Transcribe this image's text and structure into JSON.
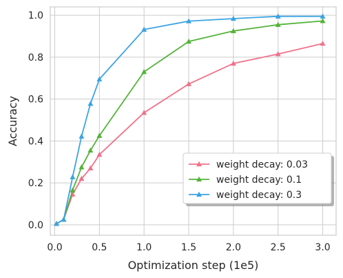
{
  "chart_data": {
    "type": "line",
    "title": "",
    "xlabel": "Optimization step (1e5)",
    "ylabel": "Accuracy",
    "xlim": [
      -0.05,
      3.15
    ],
    "ylim": [
      -0.05,
      1.04
    ],
    "grid": true,
    "xticks": [
      0.0,
      0.5,
      1.0,
      1.5,
      2.0,
      2.5,
      3.0
    ],
    "xtick_labels": [
      "0.0",
      "0.5",
      "1.0",
      "1.5",
      "2.0",
      "2.5",
      "3.0"
    ],
    "yticks": [
      0.0,
      0.2,
      0.4,
      0.6,
      0.8,
      1.0
    ],
    "ytick_labels": [
      "0.0",
      "0.2",
      "0.4",
      "0.6",
      "0.8",
      "1.0"
    ],
    "legend_position": "lower-right",
    "x": [
      0.02,
      0.1,
      0.2,
      0.3,
      0.4,
      0.5,
      1.0,
      1.5,
      2.0,
      2.5,
      3.0
    ],
    "series": [
      {
        "name": "weight decay: 0.03",
        "color": "#f0718a",
        "marker": "triangle",
        "values": [
          0.005,
          0.025,
          0.145,
          0.22,
          0.27,
          0.335,
          0.535,
          0.672,
          0.77,
          0.815,
          0.865
        ]
      },
      {
        "name": "weight decay: 0.1",
        "color": "#54b33a",
        "marker": "triangle",
        "values": [
          0.005,
          0.025,
          0.165,
          0.275,
          0.355,
          0.425,
          0.73,
          0.875,
          0.925,
          0.955,
          0.973
        ]
      },
      {
        "name": "weight decay: 0.3",
        "color": "#3ba3e3",
        "marker": "triangle",
        "values": [
          0.005,
          0.025,
          0.228,
          0.422,
          0.578,
          0.695,
          0.932,
          0.972,
          0.984,
          0.995,
          0.995
        ]
      }
    ]
  }
}
